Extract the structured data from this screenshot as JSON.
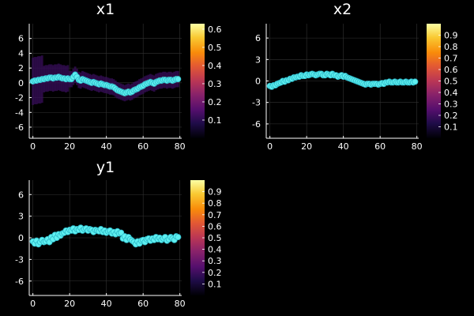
{
  "chart_data": [
    {
      "type": "scatter",
      "title": "x1",
      "xlabel": "",
      "ylabel": "",
      "xlim": [
        -2,
        81
      ],
      "ylim": [
        -7.5,
        8
      ],
      "xticks": [
        0,
        20,
        40,
        60,
        80
      ],
      "yticks": [
        -6,
        -4,
        -2,
        0,
        2,
        4,
        6
      ],
      "grid": true,
      "colorbar": {
        "colormap": "inferno",
        "range": [
          0,
          0.63
        ],
        "ticks": [
          0.1,
          0.2,
          0.3,
          0.4,
          0.5,
          0.6
        ]
      },
      "heatmap": {
        "mode": "band",
        "intensity_peak_region": [
          44,
          80
        ]
      },
      "series": [
        {
          "x": [
            0,
            1,
            2,
            3,
            4,
            5,
            6,
            7,
            8,
            9,
            10,
            11,
            12,
            13,
            14,
            15,
            16,
            17,
            18,
            19,
            20,
            21,
            22,
            23,
            24,
            25,
            26,
            27,
            28,
            29,
            30,
            31,
            32,
            33,
            34,
            35,
            36,
            37,
            38,
            39,
            40,
            41,
            42,
            43,
            44,
            45,
            46,
            47,
            48,
            49,
            50,
            51,
            52,
            53,
            54,
            55,
            56,
            57,
            58,
            59,
            60,
            61,
            62,
            63,
            64,
            65,
            66,
            67,
            68,
            69,
            70,
            71,
            72,
            73,
            74,
            75,
            76,
            77,
            78,
            79
          ],
          "y": [
            0.2,
            0.3,
            0.3,
            0.4,
            0.4,
            0.5,
            0.5,
            0.6,
            0.6,
            0.7,
            0.7,
            0.6,
            0.7,
            0.7,
            0.8,
            0.7,
            0.6,
            0.6,
            0.5,
            0.6,
            0.5,
            0.5,
            0.8,
            1.1,
            0.8,
            0.4,
            0.3,
            0.5,
            0.4,
            0.3,
            0.2,
            0.1,
            0.0,
            0.1,
            0.0,
            -0.1,
            -0.2,
            -0.1,
            -0.2,
            -0.3,
            -0.3,
            -0.4,
            -0.5,
            -0.5,
            -0.6,
            -0.8,
            -1.0,
            -1.1,
            -1.2,
            -1.3,
            -1.4,
            -1.3,
            -1.2,
            -1.3,
            -1.2,
            -1.0,
            -0.9,
            -0.8,
            -0.6,
            -0.5,
            -0.4,
            -0.2,
            -0.1,
            0.0,
            0.1,
            0.0,
            -0.1,
            0.1,
            0.2,
            0.3,
            0.3,
            0.4,
            0.4,
            0.3,
            0.4,
            0.4,
            0.3,
            0.4,
            0.5,
            0.5
          ]
        }
      ]
    },
    {
      "type": "scatter",
      "title": "x2",
      "xlabel": "",
      "ylabel": "",
      "xlim": [
        -2,
        81
      ],
      "ylim": [
        -8,
        8
      ],
      "xticks": [
        0,
        20,
        40,
        60,
        80
      ],
      "yticks": [
        -6,
        -3,
        0,
        3,
        6
      ],
      "grid": true,
      "colorbar": {
        "colormap": "inferno",
        "range": [
          0,
          1.0
        ],
        "ticks": [
          0.1,
          0.2,
          0.3,
          0.4,
          0.5,
          0.6,
          0.7,
          0.8,
          0.9
        ]
      },
      "series": [
        {
          "x": [
            0,
            1,
            2,
            3,
            4,
            5,
            6,
            7,
            8,
            9,
            10,
            11,
            12,
            13,
            14,
            15,
            16,
            17,
            18,
            19,
            20,
            21,
            22,
            23,
            24,
            25,
            26,
            27,
            28,
            29,
            30,
            31,
            32,
            33,
            34,
            35,
            36,
            37,
            38,
            39,
            40,
            41,
            42,
            43,
            44,
            45,
            46,
            47,
            48,
            49,
            50,
            51,
            52,
            53,
            54,
            55,
            56,
            57,
            58,
            59,
            60,
            61,
            62,
            63,
            64,
            65,
            66,
            67,
            68,
            69,
            70,
            71,
            72,
            73,
            74,
            75,
            76,
            77,
            78,
            79
          ],
          "y": [
            -0.7,
            -0.8,
            -0.6,
            -0.6,
            -0.4,
            -0.3,
            -0.2,
            0.0,
            -0.1,
            0.1,
            0.1,
            0.3,
            0.3,
            0.5,
            0.5,
            0.6,
            0.6,
            0.8,
            0.7,
            0.7,
            0.9,
            0.8,
            0.9,
            1.0,
            0.9,
            0.8,
            0.9,
            1.0,
            1.0,
            0.8,
            0.8,
            1.0,
            0.9,
            0.8,
            1.0,
            0.8,
            0.8,
            0.6,
            0.7,
            0.8,
            0.6,
            0.7,
            0.5,
            0.4,
            0.3,
            0.2,
            0.1,
            0.0,
            -0.1,
            -0.2,
            -0.3,
            -0.4,
            -0.5,
            -0.4,
            -0.4,
            -0.5,
            -0.4,
            -0.4,
            -0.4,
            -0.5,
            -0.4,
            -0.3,
            -0.4,
            -0.2,
            -0.2,
            -0.1,
            -0.2,
            -0.2,
            -0.1,
            -0.2,
            -0.2,
            -0.1,
            -0.2,
            -0.2,
            -0.1,
            -0.2,
            -0.2,
            -0.1,
            -0.2,
            -0.1
          ]
        }
      ]
    },
    {
      "type": "scatter",
      "title": "y1",
      "xlabel": "",
      "ylabel": "",
      "xlim": [
        -2,
        81
      ],
      "ylim": [
        -8,
        8
      ],
      "xticks": [
        0,
        20,
        40,
        60,
        80
      ],
      "yticks": [
        -6,
        -3,
        0,
        3,
        6
      ],
      "grid": true,
      "colorbar": {
        "colormap": "inferno",
        "range": [
          0,
          1.0
        ],
        "ticks": [
          0.1,
          0.2,
          0.3,
          0.4,
          0.5,
          0.6,
          0.7,
          0.8,
          0.9
        ]
      },
      "series": [
        {
          "x": [
            0,
            1,
            2,
            3,
            4,
            5,
            6,
            7,
            8,
            9,
            10,
            11,
            12,
            13,
            14,
            15,
            16,
            17,
            18,
            19,
            20,
            21,
            22,
            23,
            24,
            25,
            26,
            27,
            28,
            29,
            30,
            31,
            32,
            33,
            34,
            35,
            36,
            37,
            38,
            39,
            40,
            41,
            42,
            43,
            44,
            45,
            46,
            47,
            48,
            49,
            50,
            51,
            52,
            53,
            54,
            55,
            56,
            57,
            58,
            59,
            60,
            61,
            62,
            63,
            64,
            65,
            66,
            67,
            68,
            69,
            70,
            71,
            72,
            73,
            74,
            75,
            76,
            77,
            78,
            79
          ],
          "y": [
            -0.5,
            -0.8,
            -0.4,
            -0.9,
            -0.6,
            -0.3,
            -0.6,
            -0.5,
            -0.2,
            -0.6,
            0.1,
            -0.2,
            0.4,
            0.0,
            0.5,
            0.3,
            0.6,
            0.7,
            1.0,
            0.8,
            1.1,
            1.0,
            1.3,
            0.9,
            1.2,
            1.1,
            1.4,
            1.0,
            1.2,
            1.3,
            1.0,
            1.2,
            1.1,
            0.8,
            1.1,
            1.0,
            0.9,
            1.2,
            0.8,
            1.0,
            0.7,
            0.9,
            1.0,
            0.6,
            0.8,
            0.5,
            0.9,
            0.6,
            0.7,
            -0.1,
            0.2,
            -0.3,
            0.1,
            -0.2,
            -0.4,
            -0.6,
            -0.9,
            -0.5,
            -0.8,
            -0.4,
            -0.3,
            -0.6,
            -0.2,
            -0.1,
            -0.4,
            -0.1,
            -0.3,
            0.1,
            -0.2,
            0.0,
            -0.3,
            -0.1,
            0.1,
            -0.4,
            -0.2,
            0.1,
            -0.1,
            -0.3,
            0.2,
            0.1
          ]
        }
      ]
    }
  ]
}
